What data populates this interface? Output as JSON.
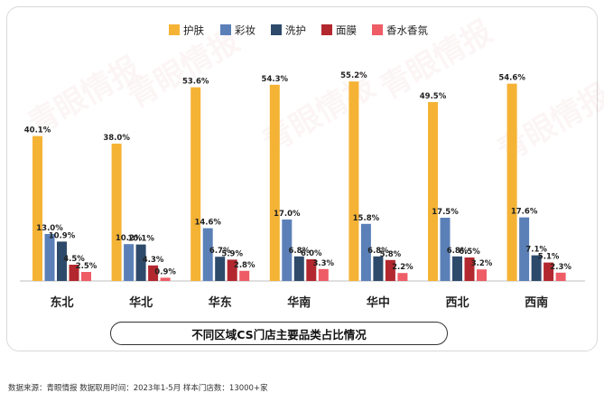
{
  "chart_data": {
    "type": "bar",
    "title": "不同区域CS门店主要品类占比情况",
    "categories": [
      "东北",
      "华北",
      "华东",
      "华南",
      "华中",
      "西北",
      "西南"
    ],
    "series": [
      {
        "name": "护肤",
        "color": "#F5B335",
        "values": [
          40.1,
          38.0,
          53.6,
          54.3,
          55.2,
          49.5,
          54.6
        ]
      },
      {
        "name": "彩妆",
        "color": "#5B80B8",
        "values": [
          13.0,
          10.2,
          14.6,
          17.0,
          15.8,
          17.5,
          17.6
        ]
      },
      {
        "name": "洗护",
        "color": "#2E4A6B",
        "values": [
          10.9,
          10.1,
          6.7,
          6.8,
          6.8,
          6.8,
          7.1
        ]
      },
      {
        "name": "面膜",
        "color": "#B2282E",
        "values": [
          4.5,
          4.3,
          5.9,
          6.0,
          5.8,
          6.5,
          5.1
        ]
      },
      {
        "name": "香水香氛",
        "color": "#EE5C66",
        "values": [
          2.5,
          0.9,
          2.8,
          3.3,
          2.2,
          3.2,
          2.3
        ]
      }
    ],
    "value_suffix": "%",
    "legend_position": "top-center",
    "grid": false
  },
  "watermark": "青眼情报",
  "source_note": "数据来源：青眼情报   数据取用时间：2023年1-5月   样本门店数：13000+家"
}
